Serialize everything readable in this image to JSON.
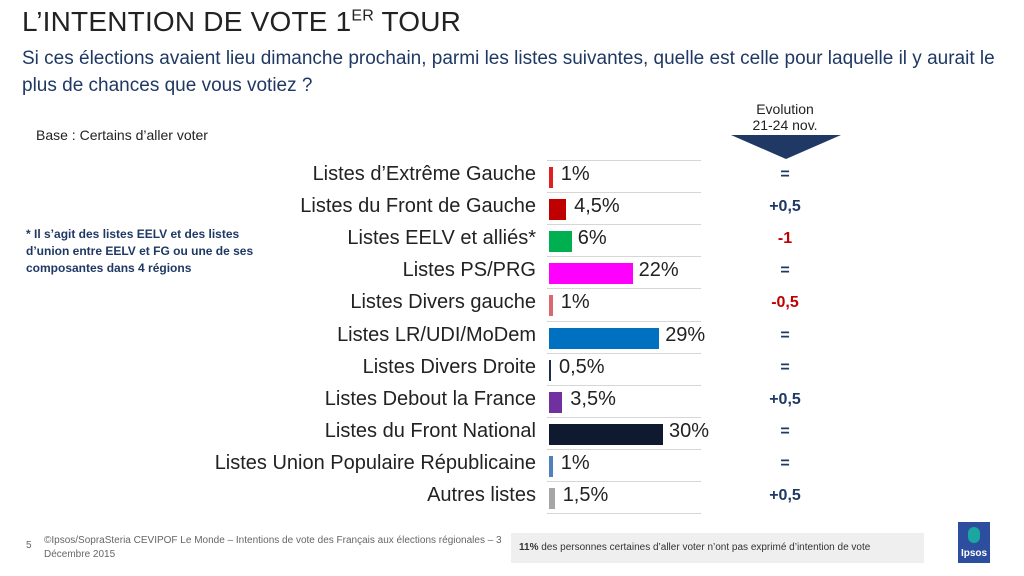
{
  "header": {
    "title": "L’INTENTION DE VOTE 1",
    "title_sup": "ER",
    "title_end": " TOUR",
    "question": "Si ces élections avaient lieu dimanche prochain, parmi les listes suivantes, quelle est celle pour laquelle il y aurait le plus de chances que vous votiez ?",
    "base": "Base : Certains d’aller voter",
    "note": "* Il s’agit des listes EELV et des listes d’union entre EELV et FG ou une de ses composantes dans 4 régions",
    "evolution_title": "Evolution",
    "evolution_period": "21-24 nov."
  },
  "chart_data": {
    "type": "bar",
    "orientation": "horizontal",
    "xlim": [
      0,
      30
    ],
    "categories": [
      "Listes d’Extrême Gauche",
      "Listes du Front de Gauche",
      "Listes EELV et alliés*",
      "Listes PS/PRG",
      "Listes Divers gauche",
      "Listes LR/UDI/MoDem",
      "Listes Divers Droite",
      "Listes Debout la France",
      "Listes du Front National",
      "Listes Union Populaire Républicaine",
      "Autres listes"
    ],
    "values": [
      1,
      4.5,
      6,
      22,
      1,
      29,
      0.5,
      3.5,
      30,
      1,
      1.5
    ],
    "value_labels": [
      "1%",
      "4,5%",
      "6%",
      "22%",
      "1%",
      "29%",
      "0,5%",
      "3,5%",
      "30%",
      "1%",
      "1,5%"
    ],
    "colors": [
      "#e02020",
      "#c00000",
      "#00b050",
      "#ff00ff",
      "#d9696e",
      "#0070c0",
      "#1f2d4e",
      "#7030a0",
      "#0f1a30",
      "#4f81bd",
      "#a6a6a6"
    ],
    "evolution": [
      "=",
      "+0,5",
      "-1",
      "=",
      "-0,5",
      "=",
      "=",
      "+0,5",
      "=",
      "=",
      "+0,5"
    ],
    "evolution_colors": {
      "negative": "#c00000",
      "default": "#1f3864"
    }
  },
  "footer": {
    "page": "5",
    "source": "©Ipsos/SopraSteria CEVIPOF Le Monde – Intentions de vote des Français aux élections régionales – 3 Décembre 2015",
    "note_bold": "11%",
    "note_rest": " des personnes certaines d’aller voter n’ont pas exprimé d’intention de vote",
    "logo": "Ipsos"
  }
}
